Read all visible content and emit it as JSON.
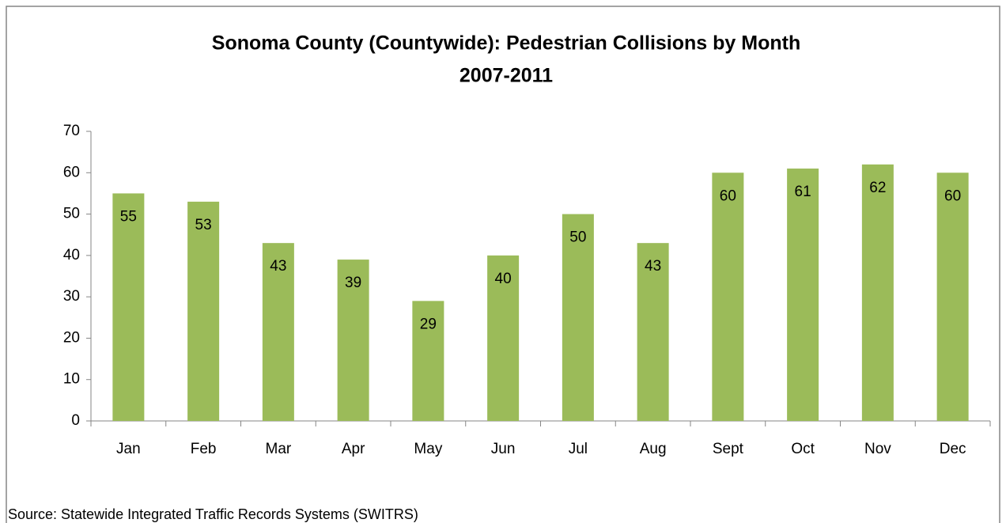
{
  "chart_data": {
    "type": "bar",
    "title": "Sonoma County (Countywide): Pedestrian Collisions by Month",
    "subtitle": "2007-2011",
    "categories": [
      "Jan",
      "Feb",
      "Mar",
      "Apr",
      "May",
      "Jun",
      "Jul",
      "Aug",
      "Sept",
      "Oct",
      "Nov",
      "Dec"
    ],
    "values": [
      55,
      53,
      43,
      39,
      29,
      40,
      50,
      43,
      60,
      61,
      62,
      60
    ],
    "color": "#9bbb59",
    "ylim": [
      0,
      70
    ],
    "yticks": [
      0,
      10,
      20,
      30,
      40,
      50,
      60,
      70
    ],
    "grid": false,
    "source": "Source: Statewide Integrated Traffic Records Systems (SWITRS)"
  }
}
